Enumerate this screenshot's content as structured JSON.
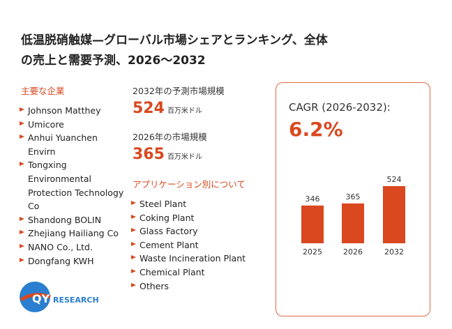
{
  "header": {
    "title_lines": [
      "低温脱硝触媒—グローバル市場シェアとランキング、全体",
      "の売上と需要予測、2026～2032"
    ]
  },
  "companies": {
    "heading": "主要な企業",
    "items": [
      "Johnson Matthey",
      "Umicore",
      "Anhui Yuanchen Envirn",
      "Tongxing Environmental Protection Technology Co",
      "Shandong BOLIN",
      "Zhejiang Hailiang Co",
      "NANO Co., Ltd.",
      "Dongfang KWH"
    ]
  },
  "market": {
    "forecast_label": "2032年の予測市場規模",
    "forecast_value": "524",
    "forecast_unit": "百万米ドル",
    "current_label": "2026年の市場規模",
    "current_value": "365",
    "current_unit": "百万米ドル"
  },
  "applications": {
    "heading": "アプリケーション別について",
    "items": [
      "Steel Plant",
      "Coking Plant",
      "Glass Factory",
      "Cement Plant",
      "Waste Incineration Plant",
      "Chemical Plant",
      "Others"
    ]
  },
  "cagr": {
    "label": "CAGR (2026-2032):",
    "value": "6.2%"
  },
  "chart_data": {
    "type": "bar",
    "categories": [
      "2025",
      "2026",
      "2032"
    ],
    "values": [
      346,
      365,
      524
    ],
    "color": "#d9481f"
  },
  "logo": {
    "mark": "QY",
    "text": "RESEARCH"
  }
}
